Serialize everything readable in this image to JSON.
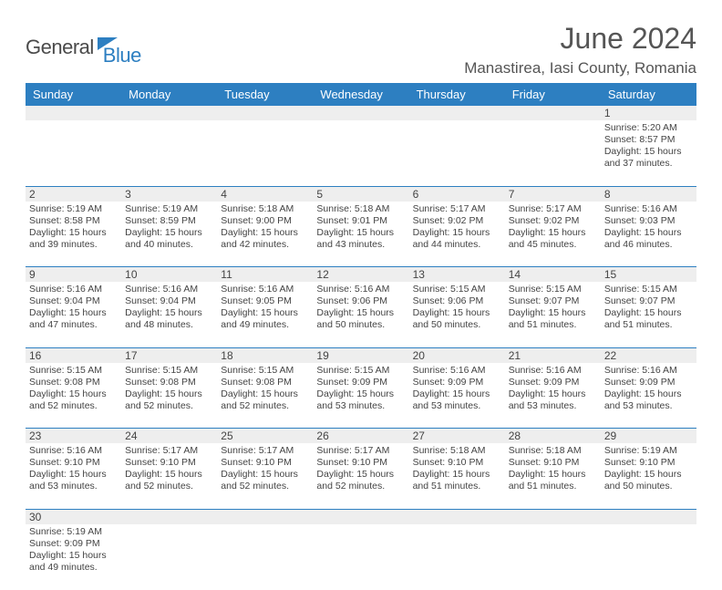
{
  "brand": {
    "part1": "General",
    "part2": "Blue"
  },
  "title": "June 2024",
  "location": "Manastirea, Iasi County, Romania",
  "day_headers": [
    "Sunday",
    "Monday",
    "Tuesday",
    "Wednesday",
    "Thursday",
    "Friday",
    "Saturday"
  ],
  "colors": {
    "header_bg": "#2d7fc1",
    "header_fg": "#ffffff",
    "daynum_bg": "#eeeeee",
    "text": "#444444",
    "accent": "#2d7fc1"
  },
  "weeks": [
    [
      null,
      null,
      null,
      null,
      null,
      null,
      {
        "n": "1",
        "sunrise": "Sunrise: 5:20 AM",
        "sunset": "Sunset: 8:57 PM",
        "day1": "Daylight: 15 hours",
        "day2": "and 37 minutes."
      }
    ],
    [
      {
        "n": "2",
        "sunrise": "Sunrise: 5:19 AM",
        "sunset": "Sunset: 8:58 PM",
        "day1": "Daylight: 15 hours",
        "day2": "and 39 minutes."
      },
      {
        "n": "3",
        "sunrise": "Sunrise: 5:19 AM",
        "sunset": "Sunset: 8:59 PM",
        "day1": "Daylight: 15 hours",
        "day2": "and 40 minutes."
      },
      {
        "n": "4",
        "sunrise": "Sunrise: 5:18 AM",
        "sunset": "Sunset: 9:00 PM",
        "day1": "Daylight: 15 hours",
        "day2": "and 42 minutes."
      },
      {
        "n": "5",
        "sunrise": "Sunrise: 5:18 AM",
        "sunset": "Sunset: 9:01 PM",
        "day1": "Daylight: 15 hours",
        "day2": "and 43 minutes."
      },
      {
        "n": "6",
        "sunrise": "Sunrise: 5:17 AM",
        "sunset": "Sunset: 9:02 PM",
        "day1": "Daylight: 15 hours",
        "day2": "and 44 minutes."
      },
      {
        "n": "7",
        "sunrise": "Sunrise: 5:17 AM",
        "sunset": "Sunset: 9:02 PM",
        "day1": "Daylight: 15 hours",
        "day2": "and 45 minutes."
      },
      {
        "n": "8",
        "sunrise": "Sunrise: 5:16 AM",
        "sunset": "Sunset: 9:03 PM",
        "day1": "Daylight: 15 hours",
        "day2": "and 46 minutes."
      }
    ],
    [
      {
        "n": "9",
        "sunrise": "Sunrise: 5:16 AM",
        "sunset": "Sunset: 9:04 PM",
        "day1": "Daylight: 15 hours",
        "day2": "and 47 minutes."
      },
      {
        "n": "10",
        "sunrise": "Sunrise: 5:16 AM",
        "sunset": "Sunset: 9:04 PM",
        "day1": "Daylight: 15 hours",
        "day2": "and 48 minutes."
      },
      {
        "n": "11",
        "sunrise": "Sunrise: 5:16 AM",
        "sunset": "Sunset: 9:05 PM",
        "day1": "Daylight: 15 hours",
        "day2": "and 49 minutes."
      },
      {
        "n": "12",
        "sunrise": "Sunrise: 5:16 AM",
        "sunset": "Sunset: 9:06 PM",
        "day1": "Daylight: 15 hours",
        "day2": "and 50 minutes."
      },
      {
        "n": "13",
        "sunrise": "Sunrise: 5:15 AM",
        "sunset": "Sunset: 9:06 PM",
        "day1": "Daylight: 15 hours",
        "day2": "and 50 minutes."
      },
      {
        "n": "14",
        "sunrise": "Sunrise: 5:15 AM",
        "sunset": "Sunset: 9:07 PM",
        "day1": "Daylight: 15 hours",
        "day2": "and 51 minutes."
      },
      {
        "n": "15",
        "sunrise": "Sunrise: 5:15 AM",
        "sunset": "Sunset: 9:07 PM",
        "day1": "Daylight: 15 hours",
        "day2": "and 51 minutes."
      }
    ],
    [
      {
        "n": "16",
        "sunrise": "Sunrise: 5:15 AM",
        "sunset": "Sunset: 9:08 PM",
        "day1": "Daylight: 15 hours",
        "day2": "and 52 minutes."
      },
      {
        "n": "17",
        "sunrise": "Sunrise: 5:15 AM",
        "sunset": "Sunset: 9:08 PM",
        "day1": "Daylight: 15 hours",
        "day2": "and 52 minutes."
      },
      {
        "n": "18",
        "sunrise": "Sunrise: 5:15 AM",
        "sunset": "Sunset: 9:08 PM",
        "day1": "Daylight: 15 hours",
        "day2": "and 52 minutes."
      },
      {
        "n": "19",
        "sunrise": "Sunrise: 5:15 AM",
        "sunset": "Sunset: 9:09 PM",
        "day1": "Daylight: 15 hours",
        "day2": "and 53 minutes."
      },
      {
        "n": "20",
        "sunrise": "Sunrise: 5:16 AM",
        "sunset": "Sunset: 9:09 PM",
        "day1": "Daylight: 15 hours",
        "day2": "and 53 minutes."
      },
      {
        "n": "21",
        "sunrise": "Sunrise: 5:16 AM",
        "sunset": "Sunset: 9:09 PM",
        "day1": "Daylight: 15 hours",
        "day2": "and 53 minutes."
      },
      {
        "n": "22",
        "sunrise": "Sunrise: 5:16 AM",
        "sunset": "Sunset: 9:09 PM",
        "day1": "Daylight: 15 hours",
        "day2": "and 53 minutes."
      }
    ],
    [
      {
        "n": "23",
        "sunrise": "Sunrise: 5:16 AM",
        "sunset": "Sunset: 9:10 PM",
        "day1": "Daylight: 15 hours",
        "day2": "and 53 minutes."
      },
      {
        "n": "24",
        "sunrise": "Sunrise: 5:17 AM",
        "sunset": "Sunset: 9:10 PM",
        "day1": "Daylight: 15 hours",
        "day2": "and 52 minutes."
      },
      {
        "n": "25",
        "sunrise": "Sunrise: 5:17 AM",
        "sunset": "Sunset: 9:10 PM",
        "day1": "Daylight: 15 hours",
        "day2": "and 52 minutes."
      },
      {
        "n": "26",
        "sunrise": "Sunrise: 5:17 AM",
        "sunset": "Sunset: 9:10 PM",
        "day1": "Daylight: 15 hours",
        "day2": "and 52 minutes."
      },
      {
        "n": "27",
        "sunrise": "Sunrise: 5:18 AM",
        "sunset": "Sunset: 9:10 PM",
        "day1": "Daylight: 15 hours",
        "day2": "and 51 minutes."
      },
      {
        "n": "28",
        "sunrise": "Sunrise: 5:18 AM",
        "sunset": "Sunset: 9:10 PM",
        "day1": "Daylight: 15 hours",
        "day2": "and 51 minutes."
      },
      {
        "n": "29",
        "sunrise": "Sunrise: 5:19 AM",
        "sunset": "Sunset: 9:10 PM",
        "day1": "Daylight: 15 hours",
        "day2": "and 50 minutes."
      }
    ],
    [
      {
        "n": "30",
        "sunrise": "Sunrise: 5:19 AM",
        "sunset": "Sunset: 9:09 PM",
        "day1": "Daylight: 15 hours",
        "day2": "and 49 minutes."
      },
      null,
      null,
      null,
      null,
      null,
      null
    ]
  ]
}
